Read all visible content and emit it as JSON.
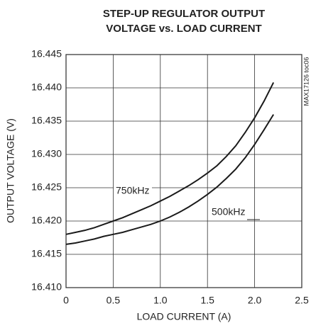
{
  "chart_data": {
    "type": "line",
    "title": [
      "STEP-UP REGULATOR OUTPUT",
      "VOLTAGE vs. LOAD CURRENT"
    ],
    "annotation": "MAX17126 toc06",
    "x_label": "LOAD CURRENT (A)",
    "y_label": "OUTPUT VOLTAGE (V)",
    "x": [
      0,
      0.1,
      0.2,
      0.3,
      0.4,
      0.5,
      0.6,
      0.7,
      0.8,
      0.9,
      1.0,
      1.1,
      1.2,
      1.3,
      1.4,
      1.5,
      1.6,
      1.7,
      1.8,
      1.9,
      2.0,
      2.1,
      2.2
    ],
    "series": [
      {
        "name": "750kHz",
        "color": "#1a1a1a",
        "values": [
          16.418,
          16.4183,
          16.4186,
          16.419,
          16.4195,
          16.42,
          16.4205,
          16.4211,
          16.4217,
          16.4223,
          16.423,
          16.4237,
          16.4245,
          16.4253,
          16.4262,
          16.4272,
          16.4283,
          16.4297,
          16.4313,
          16.4333,
          16.4355,
          16.438,
          16.4408
        ]
      },
      {
        "name": "500kHz",
        "color": "#1a1a1a",
        "values": [
          16.4165,
          16.4167,
          16.417,
          16.4173,
          16.4177,
          16.418,
          16.4183,
          16.4187,
          16.4191,
          16.4195,
          16.42,
          16.4206,
          16.4213,
          16.4221,
          16.423,
          16.424,
          16.4251,
          16.4264,
          16.4278,
          16.4295,
          16.4315,
          16.4337,
          16.436
        ]
      }
    ],
    "xlim": [
      0,
      2.5
    ],
    "xticks": [
      0,
      0.5,
      {
        "value": 1.0,
        "label": "1.0"
      },
      1.5,
      {
        "value": 2.0,
        "label": "2.0"
      },
      2.5
    ],
    "ylim": [
      16.41,
      16.445
    ],
    "yticks": [
      {
        "value": 16.41,
        "label": "16.410"
      },
      16.415,
      {
        "value": 16.42,
        "label": "16.420"
      },
      16.425,
      {
        "value": 16.43,
        "label": "16.430"
      },
      16.435,
      {
        "value": 16.44,
        "label": "16.440"
      },
      16.445
    ],
    "grid": true
  }
}
